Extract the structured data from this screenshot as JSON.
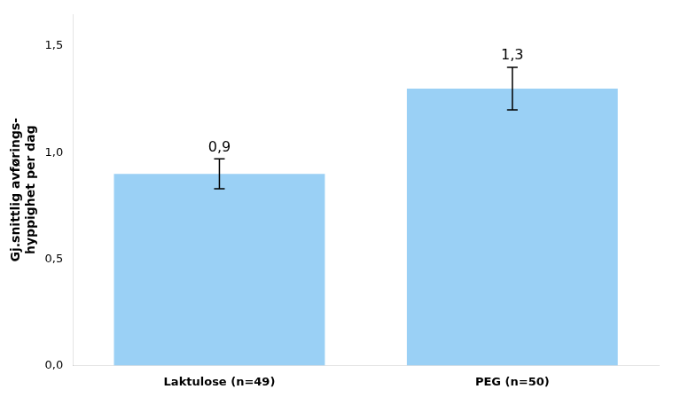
{
  "chart_data": {
    "type": "bar",
    "categories": [
      "Laktulose (n=49)",
      "PEG (n=50)"
    ],
    "values": [
      0.9,
      1.3
    ],
    "errors": [
      0.07,
      0.1
    ],
    "data_labels": true,
    "value_labels": [
      "0,9",
      "1,3"
    ],
    "ylabel": "Gj.snittlig avførings-\nhyppighet per dag",
    "ylim": [
      0,
      1.65
    ],
    "yticks": [
      {
        "value": 0.0,
        "label": "0,0"
      },
      {
        "value": 0.5,
        "label": "0,5"
      },
      {
        "value": 1.0,
        "label": "1,0"
      },
      {
        "value": 1.5,
        "label": "1,5"
      }
    ],
    "grid": false
  }
}
